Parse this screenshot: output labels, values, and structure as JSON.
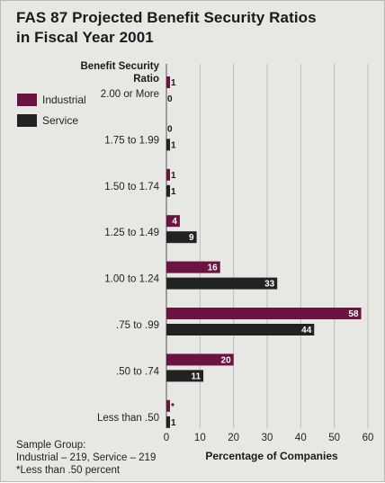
{
  "chart_data": {
    "type": "bar",
    "orientation": "horizontal",
    "title_line1": "FAS 87 Projected Benefit Security Ratios",
    "title_line2": "in Fiscal Year 2001",
    "category_header_line1": "Benefit Security",
    "category_header_line2": "Ratio",
    "xlabel": "Percentage of Companies",
    "xlim": [
      0,
      60
    ],
    "xticks": [
      "0",
      "10",
      "20",
      "30",
      "40",
      "50",
      "60"
    ],
    "grid": true,
    "legend_position": "top-left",
    "categories": [
      "2.00 or More",
      "1.75 to 1.99",
      "1.50 to 1.74",
      "1.25 to 1.49",
      "1.00 to 1.24",
      ".75 to .99",
      ".50 to .74",
      "Less than .50"
    ],
    "series": [
      {
        "name": "Industrial",
        "color": "#6b1442",
        "values": [
          1,
          0,
          1,
          4,
          16,
          58,
          20,
          0.2
        ],
        "labels": [
          "1",
          "0",
          "1",
          "4",
          "16",
          "58",
          "20",
          "*"
        ]
      },
      {
        "name": "Service",
        "color": "#222222",
        "values": [
          0,
          1,
          1,
          9,
          33,
          44,
          11,
          1
        ],
        "labels": [
          "0",
          "1",
          "1",
          "9",
          "33",
          "44",
          "11",
          "1"
        ]
      }
    ]
  },
  "footnote": {
    "line1": "Sample Group:",
    "line2": "Industrial – 219, Service – 219",
    "line3": "*Less than .50 percent"
  }
}
